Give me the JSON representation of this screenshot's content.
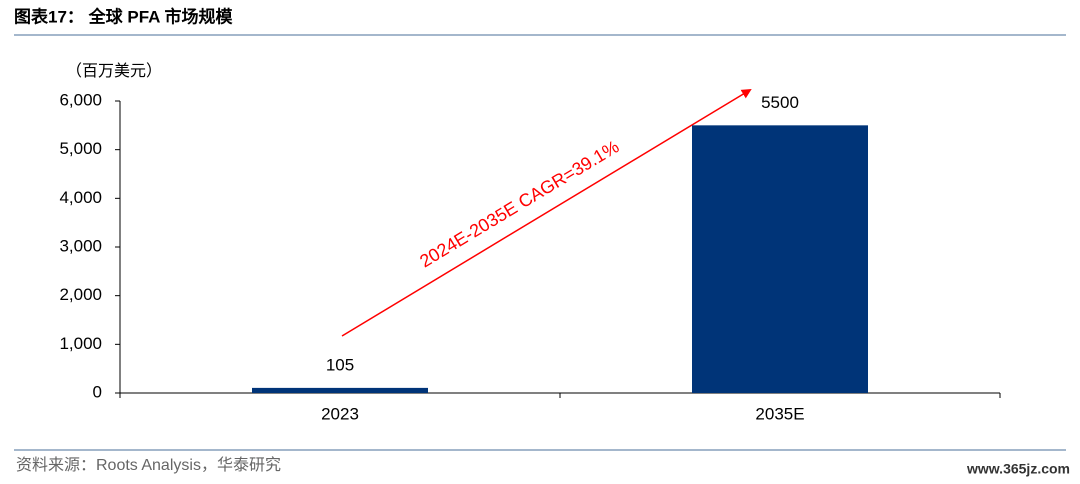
{
  "chart_data": {
    "type": "bar",
    "title": "图表17： 全球 PFA 市场规模",
    "y_label": "（百万美元）",
    "categories": [
      "2023",
      "2035E"
    ],
    "values": [
      105,
      5500
    ],
    "color": "#003478",
    "ylim": [
      0,
      6000
    ],
    "yticks": [
      0,
      {
        "value": 1000,
        "label": "1,000"
      },
      {
        "value": 2000,
        "label": "2,000"
      },
      {
        "value": 3000,
        "label": "3,000"
      },
      {
        "value": 4000,
        "label": "4,000"
      },
      {
        "value": 5000,
        "label": "5,000"
      },
      {
        "value": 6000,
        "label": "6,000"
      }
    ],
    "annotation": "2024E-2035E CAGR=39.1%",
    "source": "资料来源：Roots Analysis，华泰研究",
    "watermark": "www.365jz.com"
  }
}
